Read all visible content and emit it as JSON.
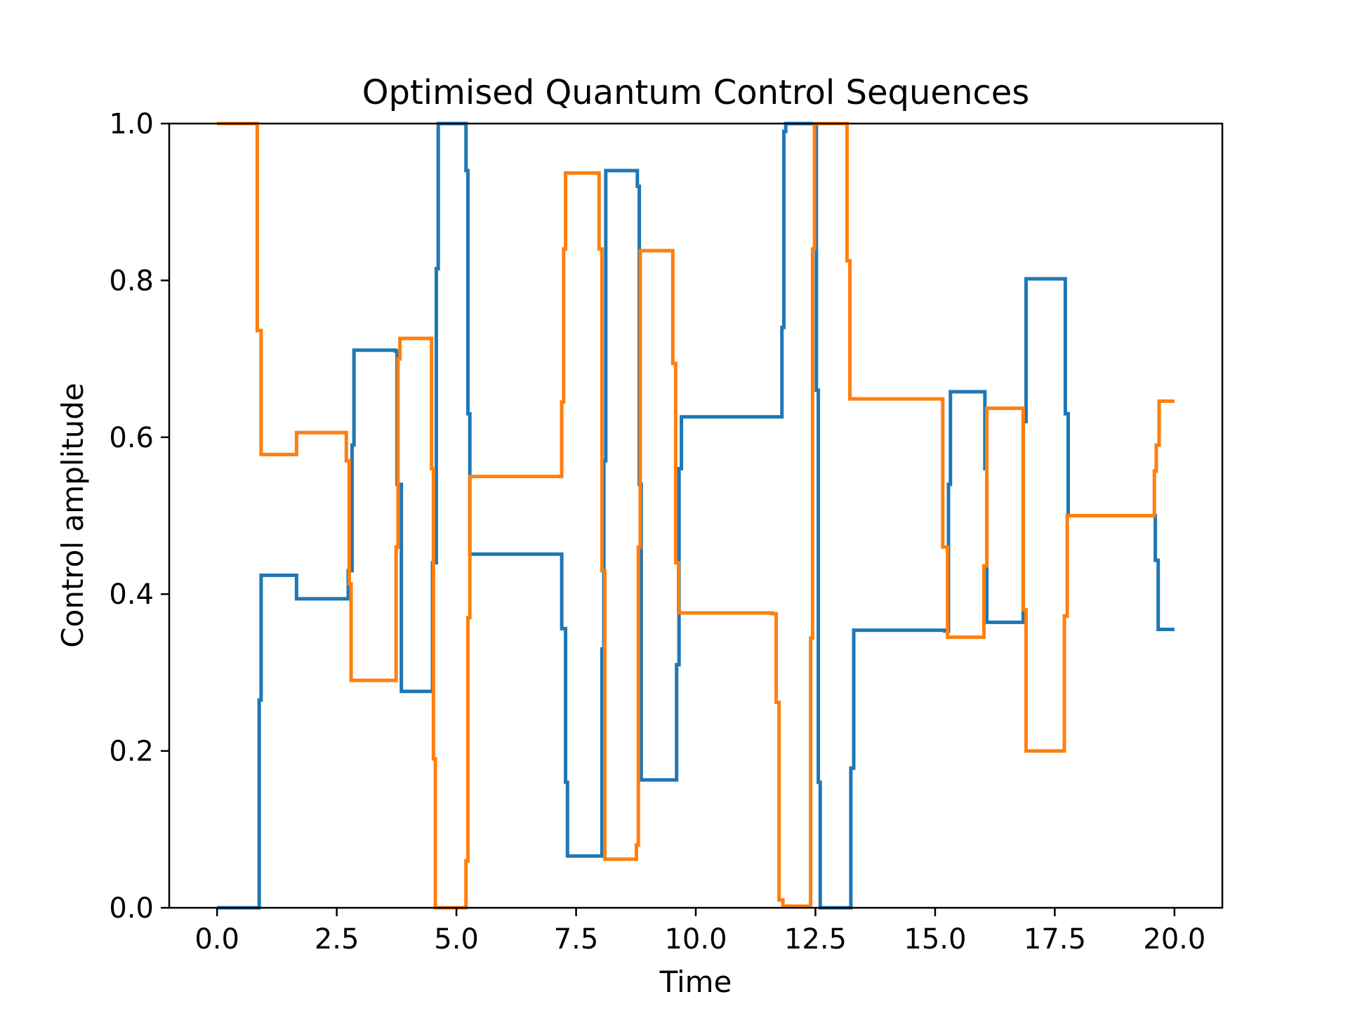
{
  "chart_data": {
    "type": "line",
    "step": "post",
    "title": "Optimised Quantum Control Sequences",
    "xlabel": "Time",
    "ylabel": "Control amplitude",
    "xlim": [
      -1.0,
      21.0
    ],
    "ylim": [
      0.0,
      1.0
    ],
    "xticks": [
      0,
      2.5,
      5,
      7.5,
      10,
      12.5,
      15,
      17.5,
      20
    ],
    "xtick_labels": [
      "0.0",
      "2.5",
      "5.0",
      "7.5",
      "10.0",
      "12.5",
      "15.0",
      "17.5",
      "20.0"
    ],
    "yticks": [
      0,
      0.2,
      0.4,
      0.6,
      0.8,
      1.0
    ],
    "ytick_labels": [
      "0.0",
      "0.2",
      "0.4",
      "0.6",
      "0.8",
      "1.0"
    ],
    "grid": false,
    "legend": false,
    "series": [
      {
        "color": "#1f77b4",
        "points": [
          [
            0.0,
            0.0
          ],
          [
            0.88,
            0.265
          ],
          [
            0.92,
            0.424
          ],
          [
            1.66,
            0.394
          ],
          [
            2.74,
            0.43
          ],
          [
            2.82,
            0.59
          ],
          [
            2.86,
            0.711
          ],
          [
            3.72,
            0.71
          ],
          [
            3.76,
            0.54
          ],
          [
            3.85,
            0.276
          ],
          [
            4.5,
            0.44
          ],
          [
            4.58,
            0.815
          ],
          [
            4.62,
            1.0
          ],
          [
            5.2,
            0.94
          ],
          [
            5.24,
            0.63
          ],
          [
            5.28,
            0.451
          ],
          [
            7.2,
            0.356
          ],
          [
            7.28,
            0.16
          ],
          [
            7.32,
            0.066
          ],
          [
            8.04,
            0.33
          ],
          [
            8.08,
            0.57
          ],
          [
            8.12,
            0.94
          ],
          [
            8.78,
            0.92
          ],
          [
            8.82,
            0.54
          ],
          [
            8.86,
            0.163
          ],
          [
            9.6,
            0.31
          ],
          [
            9.65,
            0.56
          ],
          [
            9.7,
            0.626
          ],
          [
            11.8,
            0.74
          ],
          [
            11.84,
            0.99
          ],
          [
            11.88,
            1.0
          ],
          [
            12.52,
            0.66
          ],
          [
            12.56,
            0.16
          ],
          [
            12.6,
            0.0
          ],
          [
            13.24,
            0.178
          ],
          [
            13.3,
            0.354
          ],
          [
            15.2,
            0.353
          ],
          [
            15.28,
            0.54
          ],
          [
            15.32,
            0.658
          ],
          [
            16.04,
            0.56
          ],
          [
            16.08,
            0.364
          ],
          [
            16.84,
            0.62
          ],
          [
            16.9,
            0.802
          ],
          [
            17.72,
            0.63
          ],
          [
            17.78,
            0.5
          ],
          [
            19.6,
            0.443
          ],
          [
            19.66,
            0.355
          ],
          [
            20.0,
            0.355
          ]
        ]
      },
      {
        "color": "#ff7f0e",
        "points": [
          [
            0.0,
            1.0
          ],
          [
            0.84,
            0.736
          ],
          [
            0.92,
            0.578
          ],
          [
            1.66,
            0.606
          ],
          [
            2.7,
            0.57
          ],
          [
            2.76,
            0.413
          ],
          [
            2.8,
            0.29
          ],
          [
            3.74,
            0.46
          ],
          [
            3.78,
            0.7
          ],
          [
            3.82,
            0.726
          ],
          [
            4.48,
            0.56
          ],
          [
            4.52,
            0.19
          ],
          [
            4.56,
            0.0
          ],
          [
            5.2,
            0.06
          ],
          [
            5.24,
            0.37
          ],
          [
            5.28,
            0.55
          ],
          [
            7.2,
            0.645
          ],
          [
            7.24,
            0.84
          ],
          [
            7.28,
            0.937
          ],
          [
            7.98,
            0.84
          ],
          [
            8.04,
            0.43
          ],
          [
            8.1,
            0.062
          ],
          [
            8.76,
            0.08
          ],
          [
            8.8,
            0.46
          ],
          [
            8.84,
            0.838
          ],
          [
            9.52,
            0.694
          ],
          [
            9.58,
            0.44
          ],
          [
            9.64,
            0.376
          ],
          [
            11.6,
            0.375
          ],
          [
            11.68,
            0.262
          ],
          [
            11.74,
            0.01
          ],
          [
            11.82,
            0.002
          ],
          [
            12.4,
            0.344
          ],
          [
            12.44,
            0.84
          ],
          [
            12.48,
            1.0
          ],
          [
            13.16,
            0.825
          ],
          [
            13.22,
            0.649
          ],
          [
            15.16,
            0.46
          ],
          [
            15.26,
            0.345
          ],
          [
            16.02,
            0.436
          ],
          [
            16.08,
            0.637
          ],
          [
            16.84,
            0.38
          ],
          [
            16.9,
            0.2
          ],
          [
            17.7,
            0.372
          ],
          [
            17.76,
            0.5
          ],
          [
            19.58,
            0.557
          ],
          [
            19.62,
            0.59
          ],
          [
            19.68,
            0.646
          ],
          [
            20.0,
            0.646
          ]
        ]
      }
    ]
  }
}
